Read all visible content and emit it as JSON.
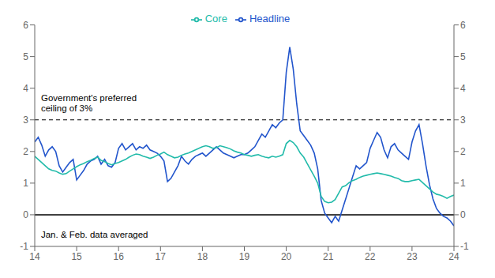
{
  "chart_data": {
    "type": "line",
    "legend": "top",
    "grid": false,
    "xlim": [
      14,
      24
    ],
    "xticks": [
      14,
      15,
      16,
      17,
      18,
      19,
      20,
      21,
      22,
      23,
      24
    ],
    "ylim": [
      -1,
      6
    ],
    "yticks": [
      -1,
      0,
      1,
      2,
      3,
      4,
      5,
      6
    ],
    "y2lim": [
      -1,
      6
    ],
    "y2ticks": [
      -1,
      0,
      1,
      2,
      3,
      4,
      5,
      6
    ],
    "reference_lines": [
      {
        "y": 3.0,
        "line_style": "dashed"
      },
      {
        "y": 0.0,
        "line_style": "solid"
      }
    ],
    "annotations": [
      {
        "text": "Government's preferred\nceiling of 3%",
        "x": 14.15,
        "y": 3.85
      },
      {
        "text": "Jan. & Feb. data averaged",
        "x": 14.15,
        "y": -0.62
      }
    ],
    "x": [
      14.0,
      14.083,
      14.167,
      14.25,
      14.333,
      14.417,
      14.5,
      14.583,
      14.667,
      14.75,
      14.833,
      14.917,
      15.0,
      15.083,
      15.167,
      15.25,
      15.333,
      15.417,
      15.5,
      15.583,
      15.667,
      15.75,
      15.833,
      15.917,
      16.0,
      16.083,
      16.167,
      16.25,
      16.333,
      16.417,
      16.5,
      16.583,
      16.667,
      16.75,
      16.833,
      16.917,
      17.0,
      17.083,
      17.167,
      17.25,
      17.333,
      17.417,
      17.5,
      17.583,
      17.667,
      17.75,
      17.833,
      17.917,
      18.0,
      18.083,
      18.167,
      18.25,
      18.333,
      18.417,
      18.5,
      18.583,
      18.667,
      18.75,
      18.833,
      18.917,
      19.0,
      19.083,
      19.167,
      19.25,
      19.333,
      19.417,
      19.5,
      19.583,
      19.667,
      19.75,
      19.833,
      19.917,
      20.0,
      20.083,
      20.167,
      20.25,
      20.333,
      20.417,
      20.5,
      20.583,
      20.667,
      20.75,
      20.833,
      20.917,
      21.0,
      21.083,
      21.167,
      21.25,
      21.333,
      21.417,
      21.5,
      21.583,
      21.667,
      21.75,
      21.833,
      21.917,
      22.0,
      22.083,
      22.167,
      22.25,
      22.333,
      22.417,
      22.5,
      22.583,
      22.667,
      22.75,
      22.833,
      22.917,
      23.0,
      23.083,
      23.167,
      23.25,
      23.333,
      23.417,
      23.5,
      23.583,
      23.667,
      23.75,
      23.833,
      23.917,
      24.0
    ],
    "series": [
      {
        "name": "Headline",
        "color": "#2255cc",
        "values": [
          2.3,
          2.45,
          2.2,
          1.85,
          2.05,
          2.15,
          2.0,
          1.55,
          1.35,
          1.5,
          1.65,
          1.75,
          1.1,
          1.25,
          1.4,
          1.6,
          1.7,
          1.75,
          1.85,
          1.6,
          1.75,
          1.55,
          1.5,
          1.65,
          2.1,
          2.25,
          2.05,
          2.15,
          2.25,
          2.05,
          2.15,
          2.1,
          2.2,
          2.05,
          2.0,
          1.95,
          1.85,
          1.7,
          1.05,
          1.15,
          1.35,
          1.55,
          1.85,
          1.7,
          1.6,
          1.75,
          1.85,
          1.9,
          1.95,
          1.85,
          1.95,
          2.05,
          2.15,
          2.05,
          1.95,
          1.9,
          1.85,
          1.8,
          1.85,
          1.9,
          1.9,
          1.95,
          2.05,
          2.15,
          2.35,
          2.55,
          2.45,
          2.65,
          2.85,
          2.75,
          2.9,
          3.0,
          4.5,
          5.3,
          4.6,
          3.5,
          2.65,
          2.5,
          2.35,
          2.2,
          1.95,
          1.45,
          0.45,
          0.05,
          -0.1,
          -0.25,
          -0.05,
          -0.2,
          0.15,
          0.5,
          0.85,
          1.2,
          1.55,
          1.45,
          1.55,
          1.65,
          2.1,
          2.35,
          2.6,
          2.45,
          2.05,
          1.8,
          2.15,
          2.25,
          2.05,
          1.95,
          1.85,
          1.75,
          2.3,
          2.65,
          2.85,
          2.25,
          1.55,
          0.95,
          0.5,
          0.2,
          0.05,
          -0.05,
          -0.1,
          -0.2,
          -0.35
        ]
      },
      {
        "name": "Core",
        "color": "#22bbaa",
        "values": [
          1.85,
          1.75,
          1.65,
          1.55,
          1.45,
          1.4,
          1.38,
          1.32,
          1.28,
          1.3,
          1.38,
          1.45,
          1.52,
          1.58,
          1.62,
          1.68,
          1.72,
          1.78,
          1.82,
          1.72,
          1.68,
          1.62,
          1.58,
          1.62,
          1.65,
          1.7,
          1.75,
          1.82,
          1.88,
          1.92,
          1.9,
          1.85,
          1.82,
          1.78,
          1.82,
          1.88,
          1.92,
          1.98,
          1.9,
          1.85,
          1.8,
          1.82,
          1.88,
          1.92,
          1.95,
          2.0,
          2.05,
          2.1,
          2.15,
          2.18,
          2.15,
          2.1,
          2.12,
          2.18,
          2.15,
          2.12,
          2.08,
          2.02,
          1.98,
          1.95,
          1.9,
          1.88,
          1.85,
          1.88,
          1.9,
          1.85,
          1.82,
          1.8,
          1.85,
          1.82,
          1.85,
          1.9,
          2.25,
          2.35,
          2.28,
          2.15,
          1.95,
          1.82,
          1.62,
          1.42,
          1.22,
          1.0,
          0.58,
          0.42,
          0.38,
          0.4,
          0.48,
          0.68,
          0.88,
          0.92,
          1.02,
          1.08,
          1.12,
          1.18,
          1.22,
          1.25,
          1.28,
          1.3,
          1.32,
          1.3,
          1.28,
          1.25,
          1.22,
          1.18,
          1.15,
          1.08,
          1.05,
          1.05,
          1.08,
          1.1,
          1.12,
          1.02,
          0.92,
          0.82,
          0.72,
          0.65,
          0.62,
          0.58,
          0.52,
          0.58,
          0.62
        ]
      }
    ]
  }
}
